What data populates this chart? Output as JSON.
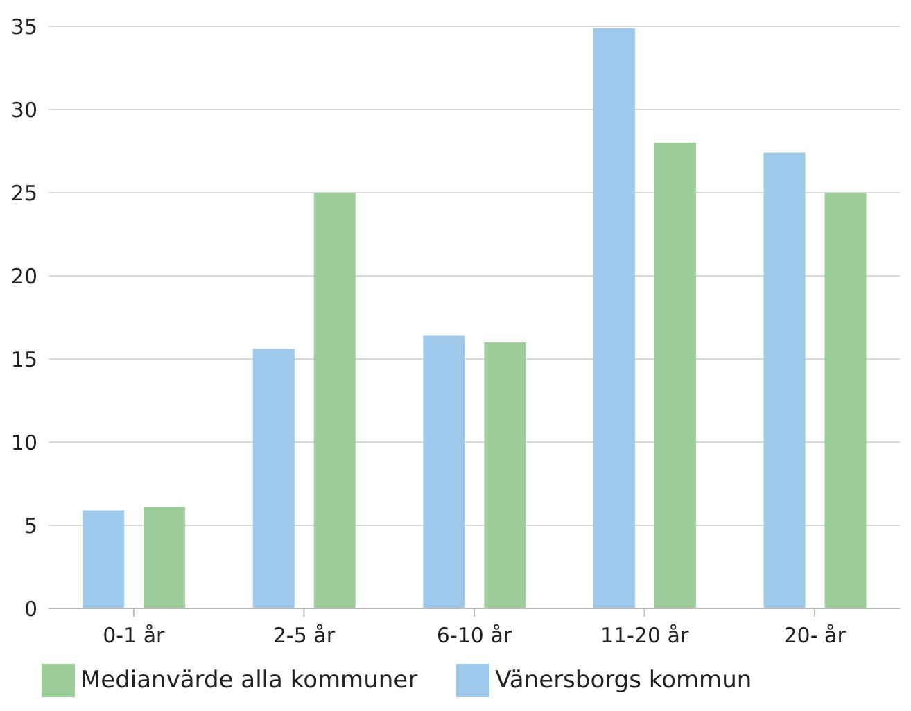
{
  "chart_data": {
    "type": "bar",
    "categories": [
      "0-1 år",
      "2-5 år",
      "6-10 år",
      "11-20 år",
      "20- år"
    ],
    "series": [
      {
        "name": "Vänersborgs kommun",
        "color": "#9dc8ea",
        "values": [
          5.9,
          15.6,
          16.4,
          34.9,
          27.4
        ]
      },
      {
        "name": "Medianvärde alla kommuner",
        "color": "#9dcd9a",
        "values": [
          6.1,
          25,
          16,
          28,
          25
        ]
      }
    ],
    "ylim": [
      0,
      35
    ],
    "yticks": [
      0,
      5,
      10,
      15,
      20,
      25,
      30,
      35
    ],
    "grid": "y",
    "legend": "bottom left"
  }
}
